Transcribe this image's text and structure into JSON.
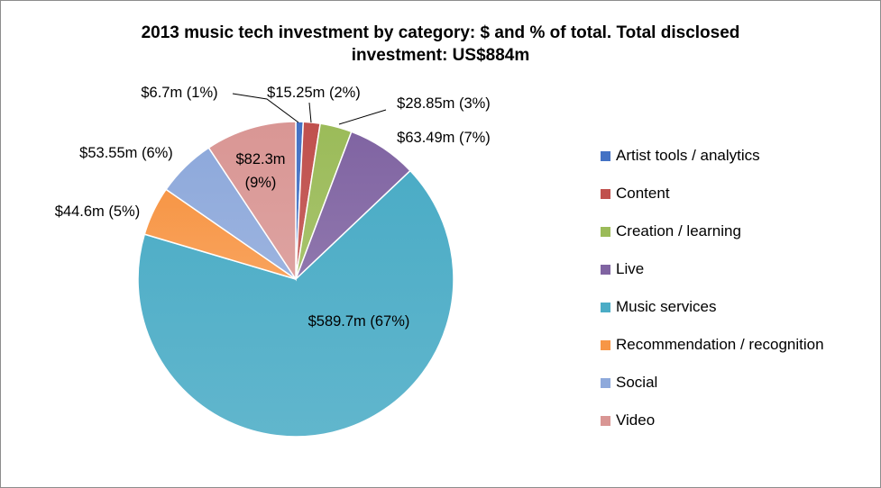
{
  "chart_data": {
    "type": "pie",
    "title_line1": "2013 music tech investment by category: $ and % of total. Total disclosed",
    "title_line2": "investment: US$884m",
    "categories": [
      "Artist tools / analytics",
      "Content",
      "Creation / learning",
      "Live",
      "Music services",
      "Recommendation / recognition",
      "Social",
      "Video"
    ],
    "values": [
      6.7,
      15.25,
      28.85,
      63.49,
      589.7,
      44.6,
      53.55,
      82.3
    ],
    "data_labels": [
      "$6.7m (1%)",
      "$15.25m (2%)",
      "$28.85m (3%)",
      "$63.49m (7%)",
      "$589.7m (67%)",
      "$44.6m (5%)",
      "$53.55m (6%)",
      "$82.3m (9%)"
    ],
    "colors": [
      "#4472C4",
      "#C0504D",
      "#9BBB59",
      "#8064A2",
      "#4BACC6",
      "#F79646",
      "#8EA9DB",
      "#D99694"
    ],
    "legend_position": "right",
    "start": "top, clockwise"
  }
}
